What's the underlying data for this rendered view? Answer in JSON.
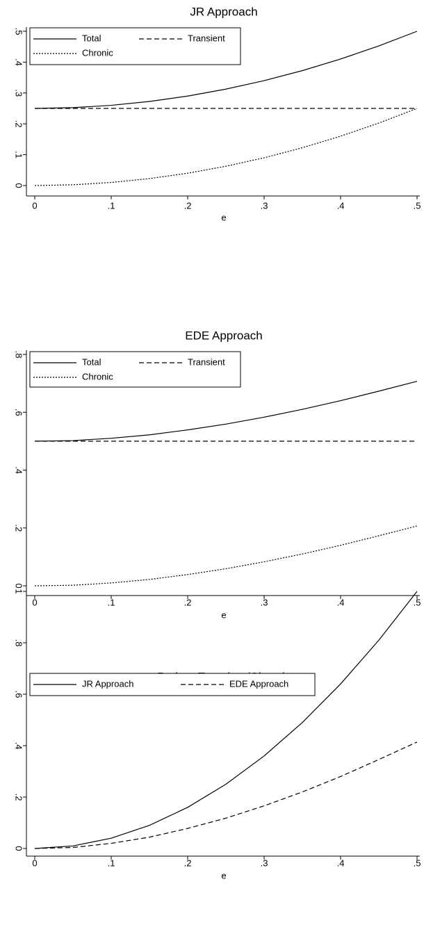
{
  "chart_data": [
    {
      "type": "line",
      "title": "JR Approach",
      "xlabel": "e",
      "x": [
        0,
        0.05,
        0.1,
        0.15,
        0.2,
        0.25,
        0.3,
        0.35,
        0.4,
        0.45,
        0.5
      ],
      "series": [
        {
          "name": "Total",
          "color": "#000000",
          "dash": "solid",
          "values": [
            0.25,
            0.2525,
            0.26,
            0.2725,
            0.29,
            0.3125,
            0.34,
            0.3725,
            0.41,
            0.4525,
            0.5
          ]
        },
        {
          "name": "Transient",
          "color": "#000000",
          "dash": "dashed",
          "values": [
            0.25,
            0.25,
            0.25,
            0.25,
            0.25,
            0.25,
            0.25,
            0.25,
            0.25,
            0.25,
            0.25
          ]
        },
        {
          "name": "Chronic",
          "color": "#000000",
          "dash": "dotted",
          "values": [
            0,
            0.0025,
            0.01,
            0.0225,
            0.04,
            0.0625,
            0.09,
            0.1225,
            0.16,
            0.2025,
            0.25
          ]
        }
      ],
      "xlim": [
        0,
        0.5
      ],
      "ylim": [
        0,
        0.5
      ],
      "xticks": [
        0,
        {
          "value": 0.1,
          "label": ".1"
        },
        {
          "value": 0.2,
          "label": ".2"
        },
        {
          "value": 0.3,
          "label": ".3"
        },
        {
          "value": 0.4,
          "label": ".4"
        },
        {
          "value": 0.5,
          "label": ".5"
        }
      ],
      "yticks": [
        0,
        {
          "value": 0.1,
          "label": ".1"
        },
        {
          "value": 0.2,
          "label": ".2"
        },
        {
          "value": 0.3,
          "label": ".3"
        },
        {
          "value": 0.4,
          "label": ".4"
        },
        {
          "value": 0.5,
          "label": ".5"
        }
      ],
      "legend": "upper-left",
      "grid": false
    },
    {
      "type": "line",
      "title": "EDE Approach",
      "xlabel": "e",
      "x": [
        0,
        0.05,
        0.1,
        0.15,
        0.2,
        0.25,
        0.3,
        0.35,
        0.4,
        0.45,
        0.5
      ],
      "series": [
        {
          "name": "Total",
          "color": "#000000",
          "dash": "solid",
          "values": [
            0.5,
            0.502,
            0.51,
            0.522,
            0.539,
            0.559,
            0.583,
            0.61,
            0.64,
            0.673,
            0.707
          ]
        },
        {
          "name": "Transient",
          "color": "#000000",
          "dash": "dashed",
          "values": [
            0.5,
            0.5,
            0.5,
            0.5,
            0.5,
            0.5,
            0.5,
            0.5,
            0.5,
            0.5,
            0.5
          ]
        },
        {
          "name": "Chronic",
          "color": "#000000",
          "dash": "dotted",
          "values": [
            0,
            0.002,
            0.01,
            0.022,
            0.039,
            0.059,
            0.083,
            0.11,
            0.14,
            0.173,
            0.207
          ]
        }
      ],
      "xlim": [
        0,
        0.5
      ],
      "ylim": [
        0,
        0.8
      ],
      "xticks": [
        0,
        {
          "value": 0.1,
          "label": ".1"
        },
        {
          "value": 0.2,
          "label": ".2"
        },
        {
          "value": 0.3,
          "label": ".3"
        },
        {
          "value": 0.4,
          "label": ".4"
        },
        {
          "value": 0.5,
          "label": ".5"
        }
      ],
      "yticks": [
        0,
        {
          "value": 0.2,
          "label": ".2"
        },
        {
          "value": 0.4,
          "label": ".4"
        },
        {
          "value": 0.6,
          "label": ".6"
        },
        {
          "value": 0.8,
          "label": ".8"
        }
      ],
      "legend": "upper-left",
      "grid": false
    },
    {
      "type": "line",
      "title": "Ratio = Transient/Chronic",
      "xlabel": "e",
      "x": [
        0,
        0.05,
        0.1,
        0.15,
        0.2,
        0.25,
        0.3,
        0.35,
        0.4,
        0.45,
        0.5
      ],
      "series": [
        {
          "name": "JR Approach",
          "color": "#000000",
          "dash": "solid",
          "values": [
            0,
            0.01,
            0.04,
            0.09,
            0.16,
            0.25,
            0.36,
            0.49,
            0.64,
            0.81,
            1
          ]
        },
        {
          "name": "EDE Approach",
          "color": "#000000",
          "dash": "dashed",
          "values": [
            0,
            0.004,
            0.02,
            0.044,
            0.078,
            0.118,
            0.166,
            0.22,
            0.28,
            0.346,
            0.414
          ]
        }
      ],
      "xlim": [
        0,
        0.5
      ],
      "ylim": [
        0,
        1
      ],
      "xticks": [
        0,
        {
          "value": 0.1,
          "label": ".1"
        },
        {
          "value": 0.2,
          "label": ".2"
        },
        {
          "value": 0.3,
          "label": ".3"
        },
        {
          "value": 0.4,
          "label": ".4"
        },
        {
          "value": 0.5,
          "label": ".5"
        }
      ],
      "yticks": [
        0,
        {
          "value": 0.2,
          "label": ".2"
        },
        {
          "value": 0.4,
          "label": ".4"
        },
        {
          "value": 0.6,
          "label": ".6"
        },
        {
          "value": 0.8,
          "label": ".8"
        },
        1
      ],
      "legend": "upper-left",
      "grid": false
    }
  ]
}
